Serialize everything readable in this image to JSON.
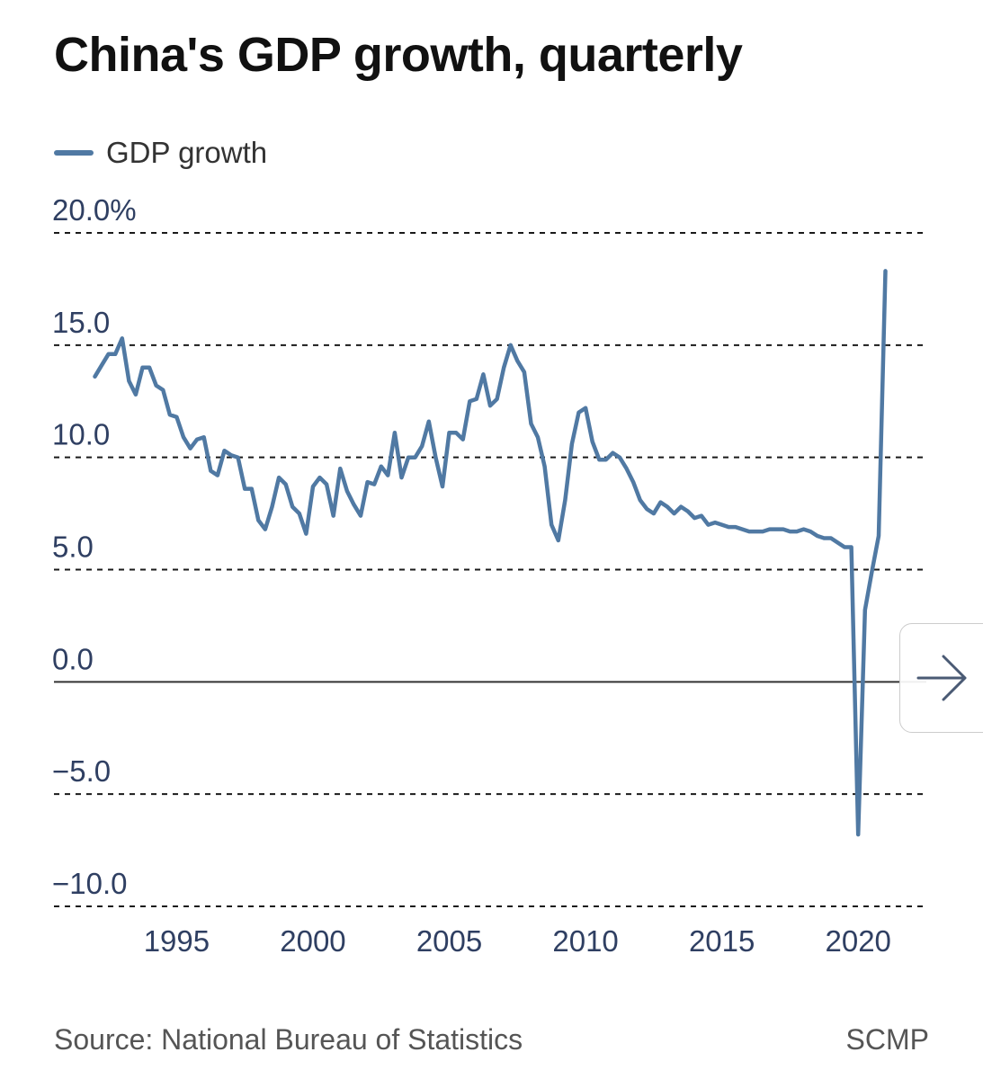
{
  "title": "China's GDP growth, quarterly",
  "legend": {
    "label": "GDP growth",
    "color": "#5079a3"
  },
  "footer": {
    "source": "Source: National Bureau of Statistics",
    "brand": "SCMP"
  },
  "nav": {
    "next_icon": "arrow-right-icon"
  },
  "chart_data": {
    "type": "line",
    "title": "China's GDP growth, quarterly",
    "xlabel": "",
    "ylabel": "",
    "ylim": [
      -10,
      20
    ],
    "xlim": [
      1990.5,
      2022.5
    ],
    "y_ticks": [
      20,
      15,
      10,
      5,
      0,
      -5,
      -10
    ],
    "y_tick_labels": [
      "20.0%",
      "15.0",
      "10.0",
      "5.0",
      "0.0",
      "−5.0",
      "−10.0"
    ],
    "x_ticks": [
      1995,
      2000,
      2005,
      2010,
      2015,
      2020
    ],
    "x_tick_labels": [
      "1995",
      "2000",
      "2005",
      "2010",
      "2015",
      "2020"
    ],
    "grid": "horizontal dashed",
    "legend_position": "top-left",
    "series": [
      {
        "name": "GDP growth",
        "color": "#5079a3",
        "x": [
          1992.0,
          1992.25,
          1992.5,
          1992.75,
          1993.0,
          1993.25,
          1993.5,
          1993.75,
          1994.0,
          1994.25,
          1994.5,
          1994.75,
          1995.0,
          1995.25,
          1995.5,
          1995.75,
          1996.0,
          1996.25,
          1996.5,
          1996.75,
          1997.0,
          1997.25,
          1997.5,
          1997.75,
          1998.0,
          1998.25,
          1998.5,
          1998.75,
          1999.0,
          1999.25,
          1999.5,
          1999.75,
          2000.0,
          2000.25,
          2000.5,
          2000.75,
          2001.0,
          2001.25,
          2001.5,
          2001.75,
          2002.0,
          2002.25,
          2002.5,
          2002.75,
          2003.0,
          2003.25,
          2003.5,
          2003.75,
          2004.0,
          2004.25,
          2004.5,
          2004.75,
          2005.0,
          2005.25,
          2005.5,
          2005.75,
          2006.0,
          2006.25,
          2006.5,
          2006.75,
          2007.0,
          2007.25,
          2007.5,
          2007.75,
          2008.0,
          2008.25,
          2008.5,
          2008.75,
          2009.0,
          2009.25,
          2009.5,
          2009.75,
          2010.0,
          2010.25,
          2010.5,
          2010.75,
          2011.0,
          2011.25,
          2011.5,
          2011.75,
          2012.0,
          2012.25,
          2012.5,
          2012.75,
          2013.0,
          2013.25,
          2013.5,
          2013.75,
          2014.0,
          2014.25,
          2014.5,
          2014.75,
          2015.0,
          2015.25,
          2015.5,
          2015.75,
          2016.0,
          2016.25,
          2016.5,
          2016.75,
          2017.0,
          2017.25,
          2017.5,
          2017.75,
          2018.0,
          2018.25,
          2018.5,
          2018.75,
          2019.0,
          2019.25,
          2019.5,
          2019.75,
          2020.0,
          2020.25,
          2020.5,
          2020.75,
          2021.0
        ],
        "values": [
          13.6,
          14.1,
          14.6,
          14.6,
          15.3,
          13.4,
          12.8,
          14.0,
          14.0,
          13.2,
          13.0,
          11.9,
          11.8,
          10.9,
          10.4,
          10.8,
          10.9,
          9.4,
          9.2,
          10.3,
          10.1,
          10.0,
          8.6,
          8.6,
          7.2,
          6.8,
          7.8,
          9.1,
          8.8,
          7.8,
          7.5,
          6.6,
          8.7,
          9.1,
          8.8,
          7.4,
          9.5,
          8.5,
          7.9,
          7.4,
          8.9,
          8.8,
          9.6,
          9.2,
          11.1,
          9.1,
          10.0,
          10.0,
          10.5,
          11.6,
          10.0,
          8.7,
          11.1,
          11.1,
          10.8,
          12.5,
          12.6,
          13.7,
          12.3,
          12.6,
          14.0,
          15.0,
          14.3,
          13.8,
          11.5,
          10.9,
          9.6,
          7.0,
          6.3,
          8.1,
          10.6,
          12.0,
          12.2,
          10.7,
          9.9,
          9.9,
          10.2,
          10.0,
          9.5,
          8.9,
          8.1,
          7.7,
          7.5,
          8.0,
          7.8,
          7.5,
          7.8,
          7.6,
          7.3,
          7.4,
          7.0,
          7.1,
          7.0,
          6.9,
          6.9,
          6.8,
          6.7,
          6.7,
          6.7,
          6.8,
          6.8,
          6.8,
          6.7,
          6.7,
          6.8,
          6.7,
          6.5,
          6.4,
          6.4,
          6.2,
          6.0,
          6.0,
          -6.8,
          3.2,
          4.9,
          6.5,
          18.3
        ]
      }
    ]
  }
}
